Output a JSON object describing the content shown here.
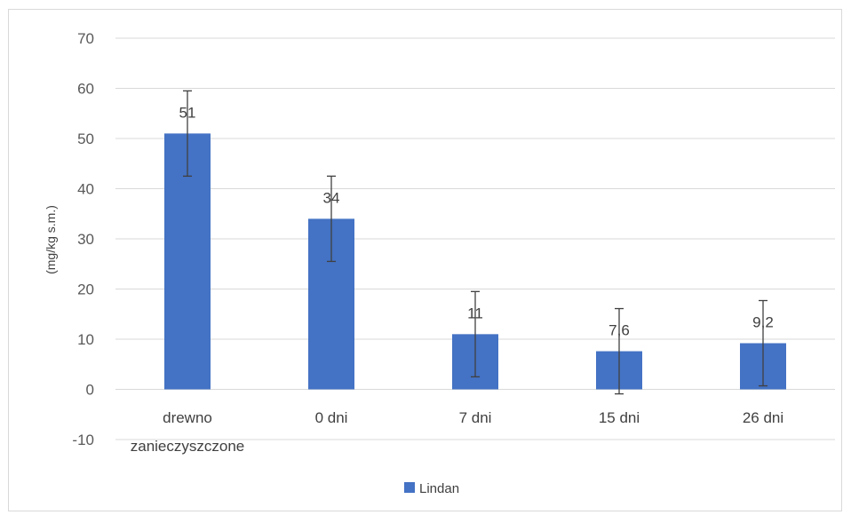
{
  "chart_data": {
    "type": "bar",
    "categories": [
      "drewno zanieczyszczone",
      "0 dni",
      "7 dni",
      "15 dni",
      "26 dni"
    ],
    "series": [
      {
        "name": "Lindan",
        "values": [
          51,
          34,
          11,
          7.6,
          9.2
        ],
        "data_labels": [
          "51",
          "34",
          "11",
          "7,6",
          "9,2"
        ],
        "error": [
          8.5,
          8.5,
          8.5,
          8.5,
          8.5
        ],
        "color": "#4472c4"
      }
    ],
    "title": "",
    "xlabel": "",
    "ylabel": "(mg/kg s.m.)",
    "ylim": [
      -10,
      70
    ],
    "yticks": [
      -10,
      0,
      10,
      20,
      30,
      40,
      50,
      60,
      70
    ],
    "grid": true,
    "legend": "bottom",
    "colors": {
      "bar": "#4472c4",
      "grid": "#d9d9d9",
      "error_bar": "#404040"
    }
  }
}
